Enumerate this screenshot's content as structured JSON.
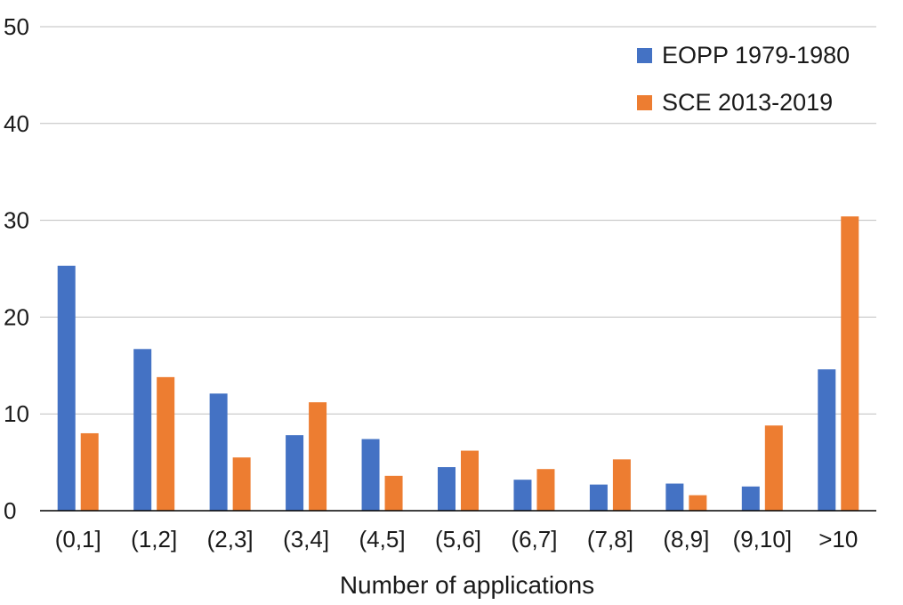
{
  "chart_data": {
    "type": "bar",
    "title": "",
    "xlabel": "Number of applications",
    "ylabel": "",
    "ylim": [
      0,
      50
    ],
    "yticks": [
      "0",
      "10",
      "20",
      "30",
      "40",
      "50"
    ],
    "grid": true,
    "legend_position": "top-right",
    "categories": [
      "(0,1]",
      "(1,2]",
      "(2,3]",
      "(3,4]",
      "(4,5]",
      "(5,6]",
      "(6,7]",
      "(7,8]",
      "(8,9]",
      "(9,10]",
      ">10"
    ],
    "series": [
      {
        "name": "EOPP 1979-1980",
        "color": "#4472c4",
        "values": [
          25.3,
          16.7,
          12.1,
          7.8,
          7.4,
          4.5,
          3.2,
          2.7,
          2.8,
          2.5,
          14.6
        ]
      },
      {
        "name": "SCE 2013-2019",
        "color": "#ed7d31",
        "values": [
          8.0,
          13.8,
          5.5,
          11.2,
          3.6,
          6.2,
          4.3,
          5.3,
          1.6,
          8.8,
          30.4
        ]
      }
    ]
  }
}
